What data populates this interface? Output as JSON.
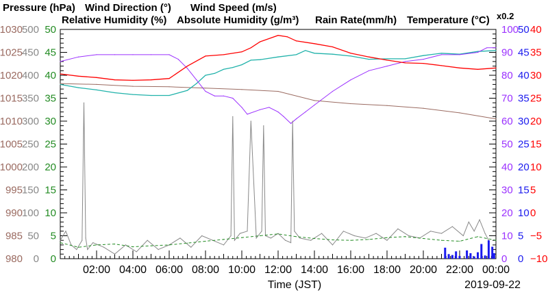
{
  "chart_data": {
    "type": "line",
    "legend": [
      {
        "text": "Pressure (hPa)",
        "color": "#9a6a60"
      },
      {
        "text": "Wind Direction (°)",
        "color": "#888888"
      },
      {
        "text": "Wind Speed (m/s)",
        "color": "#228b22"
      },
      {
        "text": "Relative Humidity (%)",
        "color": "#9b30ff"
      },
      {
        "text": "Absolute Humidity (g/m³)",
        "color": "#20b2aa"
      },
      {
        "text": "Rain Rate(mm/h)",
        "color": "#1a1aee"
      },
      {
        "text": "Temperature (°C)",
        "color": "#ff0000"
      },
      {
        "text": "x0.2",
        "color": "#20b2aa"
      }
    ],
    "xlabel": "Time (JST)",
    "date_label": "2019-09-22",
    "xlim": [
      0,
      24
    ],
    "x_ticks": [
      "02:00",
      "04:00",
      "06:00",
      "08:00",
      "10:00",
      "12:00",
      "14:00",
      "16:00",
      "18:00",
      "20:00",
      "22:00",
      "00:00"
    ],
    "left_axes": [
      {
        "name": "pressure",
        "color": "#9a6a60",
        "ticks": [
          "980",
          "985",
          "990",
          "995",
          "1000",
          "1005",
          "1010",
          "1015",
          "1020",
          "1025",
          "1030"
        ]
      },
      {
        "name": "wind_direction",
        "color": "#888888",
        "ticks": [
          "0",
          "50",
          "100",
          "150",
          "200",
          "250",
          "300",
          "350",
          "400",
          "450",
          "500"
        ]
      },
      {
        "name": "wind_speed",
        "color": "#228b22",
        "ticks": [
          "0",
          "5",
          "10",
          "15",
          "20",
          "25",
          "30",
          "35",
          "40",
          "45",
          "50"
        ]
      }
    ],
    "right_axes": [
      {
        "name": "relative_humidity",
        "color": "#9b30ff",
        "ticks": [
          "0",
          "10",
          "20",
          "30",
          "40",
          "50",
          "60",
          "70",
          "80",
          "90",
          "100"
        ]
      },
      {
        "name": "rain_rate",
        "color": "#1a1aee",
        "ticks": [
          "0",
          "5",
          "10",
          "15",
          "20",
          "25",
          "30",
          "35",
          "40",
          "45",
          "50"
        ]
      },
      {
        "name": "temperature",
        "color": "#ff0000",
        "ticks": [
          "−10",
          "−5",
          "0",
          "5",
          "10",
          "15",
          "20",
          "25",
          "30",
          "35",
          "40"
        ]
      }
    ],
    "series": [
      {
        "name": "Pressure (hPa)",
        "axis": "pressure",
        "color": "#9a6a60",
        "x": [
          0,
          2,
          4,
          6,
          8,
          10,
          12,
          14,
          16,
          18,
          20,
          22,
          24
        ],
        "y": [
          1018.2,
          1018.0,
          1017.6,
          1017.5,
          1017.2,
          1016.9,
          1016.5,
          1014.5,
          1013.8,
          1013.4,
          1012.8,
          1011.8,
          1010.5
        ]
      },
      {
        "name": "Relative Humidity (%)",
        "axis": "relative_humidity",
        "color": "#9b30ff",
        "x": [
          0,
          1,
          2,
          3,
          4,
          5,
          6,
          6.5,
          7,
          7.5,
          8,
          8.5,
          9,
          9.5,
          10,
          10.3,
          11,
          11.5,
          12,
          12.3,
          12.7,
          13,
          13.5,
          14,
          15,
          16,
          17,
          18,
          19,
          20,
          21,
          22,
          23,
          23.5,
          24
        ],
        "y": [
          86,
          88,
          89,
          89,
          89,
          89,
          89,
          87,
          83,
          78,
          73,
          71,
          71,
          70,
          66,
          63,
          65,
          66,
          64,
          62,
          59,
          61,
          64,
          67,
          73,
          78,
          82,
          84,
          86,
          87,
          89,
          89,
          90,
          92,
          92
        ]
      },
      {
        "name": "Absolute Humidity (g/m³)",
        "axis": "pressure",
        "color": "#20b2aa",
        "x": [
          0,
          1,
          2,
          3,
          4,
          5,
          6,
          7,
          7.5,
          8,
          8.5,
          9,
          9.5,
          10,
          10.5,
          11,
          12,
          13,
          13.5,
          14,
          15,
          16,
          17,
          18,
          19,
          20,
          21,
          22,
          23,
          24
        ],
        "y": [
          1018.0,
          1017.3,
          1016.8,
          1016.2,
          1015.8,
          1015.6,
          1015.6,
          1016.7,
          1018.2,
          1020.0,
          1020.4,
          1021.3,
          1021.7,
          1022.3,
          1023.3,
          1023.4,
          1024.0,
          1024.5,
          1025.4,
          1024.8,
          1024.6,
          1024.2,
          1023.5,
          1023.6,
          1023.6,
          1024.3,
          1024.8,
          1024.6,
          1025.2,
          1025.4
        ]
      },
      {
        "name": "Temperature (°C)",
        "axis": "temperature",
        "color": "#ff0000",
        "x": [
          0,
          1,
          2,
          3,
          4,
          5,
          6,
          7,
          8,
          9,
          10,
          10.5,
          11,
          12,
          12.5,
          13,
          14,
          15,
          16,
          17,
          18,
          19,
          20,
          21,
          22,
          23,
          24
        ],
        "y": [
          30.3,
          29.8,
          29.5,
          29.0,
          28.9,
          29.0,
          29.3,
          32.0,
          34.2,
          34.5,
          35.1,
          36.0,
          37.3,
          38.7,
          38.4,
          37.5,
          36.9,
          36.2,
          34.8,
          34.0,
          33.3,
          32.7,
          32.6,
          32.1,
          31.6,
          31.3,
          31.6
        ]
      },
      {
        "name": "Wind Direction (°)",
        "axis": "wind_direction",
        "color": "#888888",
        "x": [
          0,
          0.3,
          0.6,
          0.9,
          1.2,
          1.3,
          1.4,
          1.5,
          1.8,
          2.4,
          3.0,
          3.6,
          4.2,
          4.8,
          5.4,
          6.0,
          6.6,
          7.2,
          7.8,
          8.4,
          9.0,
          9.4,
          9.5,
          9.6,
          9.9,
          10.3,
          10.5,
          10.8,
          11.1,
          11.2,
          11.3,
          11.6,
          12.0,
          12.4,
          12.7,
          12.8,
          12.9,
          13.2,
          13.8,
          14.4,
          15.0,
          15.6,
          16.2,
          16.8,
          17.4,
          18.0,
          18.6,
          19.2,
          19.8,
          20.4,
          21.0,
          21.6,
          22.2,
          22.5,
          22.8,
          23.1,
          23.4,
          23.6
        ],
        "y": [
          40,
          60,
          30,
          20,
          40,
          340,
          45,
          20,
          35,
          25,
          10,
          30,
          15,
          40,
          20,
          30,
          45,
          25,
          50,
          40,
          30,
          50,
          310,
          40,
          55,
          60,
          300,
          45,
          60,
          290,
          50,
          45,
          55,
          40,
          35,
          300,
          60,
          45,
          40,
          55,
          30,
          60,
          50,
          45,
          55,
          40,
          65,
          50,
          45,
          60,
          55,
          70,
          50,
          80,
          60,
          85,
          55,
          40
        ]
      },
      {
        "name": "Wind Speed (m/s)",
        "axis": "wind_speed",
        "color": "#228b22",
        "x": [
          0,
          1,
          2,
          3,
          4,
          5,
          6,
          7,
          8,
          9,
          10,
          11,
          12,
          13,
          14,
          15,
          16,
          17,
          18,
          19,
          20,
          21,
          22,
          23,
          24
        ],
        "y": [
          3.5,
          2.5,
          3.0,
          3.2,
          2.6,
          2.8,
          3.0,
          3.4,
          3.8,
          4.2,
          4.6,
          5.0,
          5.4,
          4.8,
          4.4,
          4.1,
          4.0,
          4.2,
          4.6,
          4.8,
          4.4,
          4.0,
          3.8,
          4.8,
          4.0
        ]
      },
      {
        "name": "Rain Rate(mm/h)",
        "axis": "rain_rate",
        "color": "#1a1aee",
        "x": [
          21.0,
          21.2,
          21.4,
          21.6,
          21.8,
          22.0,
          22.2,
          22.4,
          22.6,
          22.8,
          23.0,
          23.2,
          23.4,
          23.6,
          23.8,
          23.9
        ],
        "y": [
          0,
          2.4,
          1.0,
          0.8,
          1.6,
          0.6,
          0,
          1.8,
          1.2,
          0.5,
          1.4,
          3.2,
          0.7,
          4.0,
          2.6,
          1.2
        ]
      }
    ]
  }
}
